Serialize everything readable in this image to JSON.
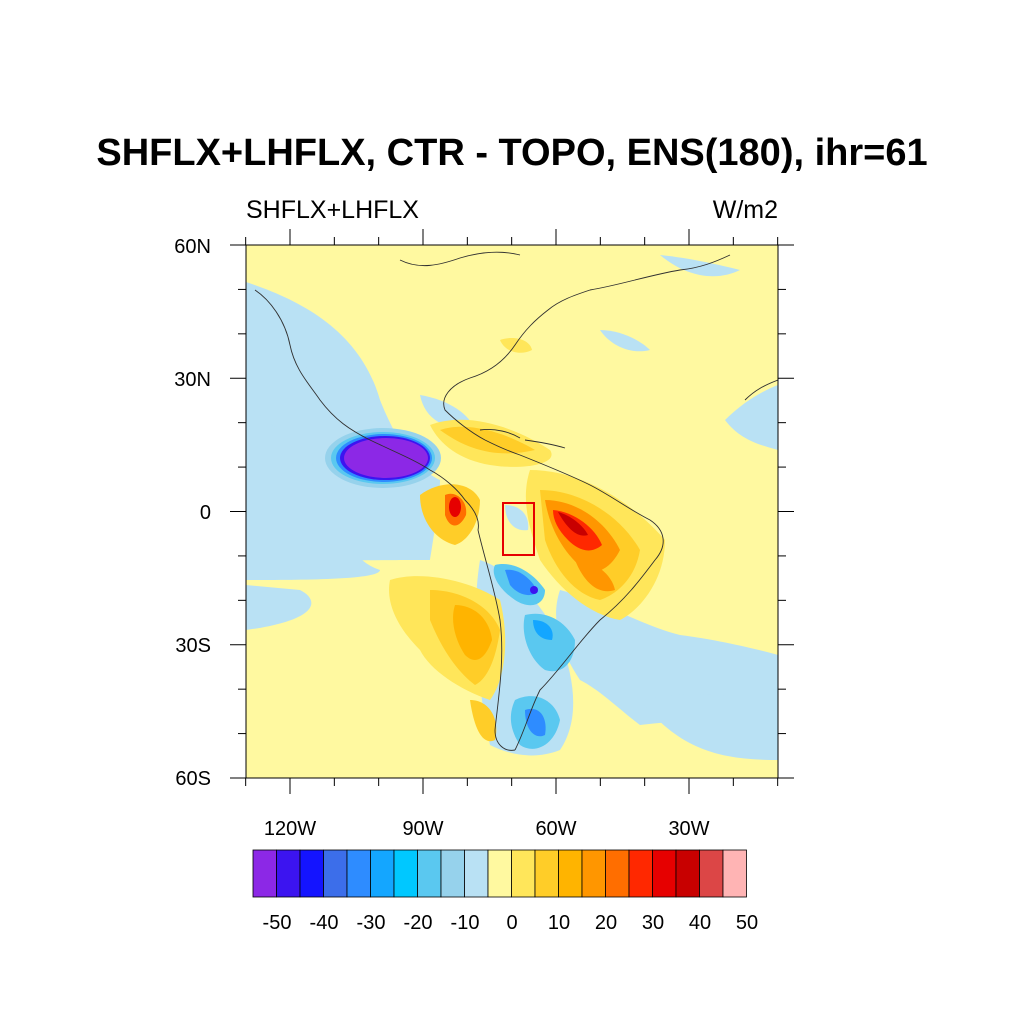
{
  "title": "SHFLX+LHFLX, CTR - TOPO, ENS(180), ihr=61",
  "left_subtitle": "SHFLX+LHFLX",
  "right_subtitle": "W/m2",
  "lat_ticks": [
    "60N",
    "30N",
    "0",
    "30S",
    "60S"
  ],
  "lon_ticks": [
    "120W",
    "90W",
    "60W",
    "30W"
  ],
  "colorbar": {
    "labels": [
      "-50",
      "-40",
      "-30",
      "-20",
      "-10",
      "0",
      "10",
      "20",
      "30",
      "40",
      "50"
    ],
    "colors": [
      "#8c28e6",
      "#3c14f0",
      "#1414ff",
      "#3c6eea",
      "#2e8cff",
      "#14a6ff",
      "#00c8ff",
      "#5ac8f0",
      "#96d2ec",
      "#b9e1f4",
      "#fff9a0",
      "#ffe65a",
      "#ffcd28",
      "#ffb400",
      "#ff9600",
      "#ff6e00",
      "#ff2800",
      "#e60000",
      "#c80000",
      "#dc4646",
      "#ffb4b4"
    ]
  },
  "map_colors": {
    "ocean_neg": "#b9e1f4",
    "land_pos": "#fff9a0",
    "box": "#e60000",
    "coast": "#303030"
  }
}
